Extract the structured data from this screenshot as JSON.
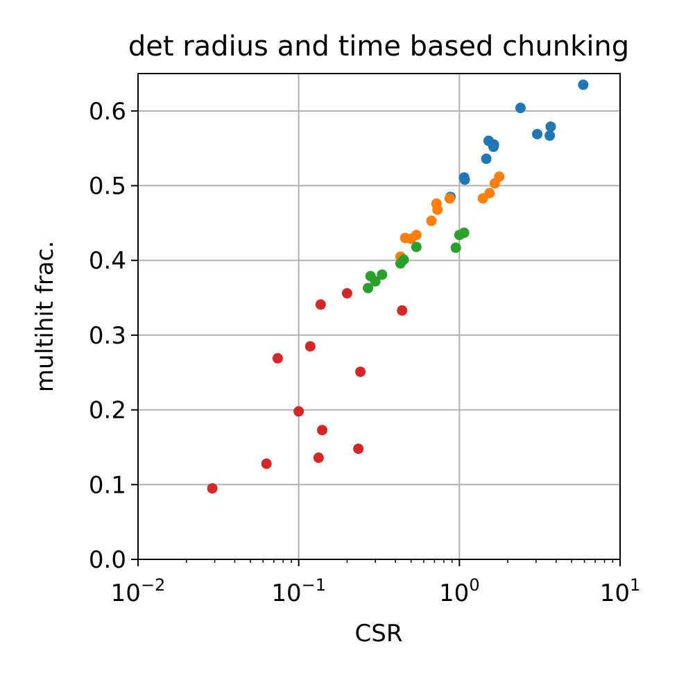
{
  "chart_data": {
    "type": "scatter",
    "title": "det radius and time based chunking",
    "xlabel": "CSR",
    "ylabel": "multihit frac.",
    "xscale": "log",
    "xlim": [
      0.01,
      10
    ],
    "ylim": [
      0.0,
      0.65
    ],
    "x_ticks": [
      {
        "value": 0.01,
        "base": "10",
        "exp": "−2"
      },
      {
        "value": 0.1,
        "base": "10",
        "exp": "−1"
      },
      {
        "value": 1,
        "base": "10",
        "exp": "0"
      },
      {
        "value": 10,
        "base": "10",
        "exp": "1"
      }
    ],
    "y_ticks": [
      {
        "value": 0.0,
        "label": "0.0"
      },
      {
        "value": 0.1,
        "label": "0.1"
      },
      {
        "value": 0.2,
        "label": "0.2"
      },
      {
        "value": 0.3,
        "label": "0.3"
      },
      {
        "value": 0.4,
        "label": "0.4"
      },
      {
        "value": 0.5,
        "label": "0.5"
      },
      {
        "value": 0.6,
        "label": "0.6"
      }
    ],
    "grid": true,
    "legend": "none",
    "series": [
      {
        "color": "#1f77b4",
        "points": [
          {
            "x": 5.9,
            "y": 0.635
          },
          {
            "x": 2.4,
            "y": 0.604
          },
          {
            "x": 3.7,
            "y": 0.579
          },
          {
            "x": 3.05,
            "y": 0.569
          },
          {
            "x": 3.65,
            "y": 0.567
          },
          {
            "x": 1.52,
            "y": 0.56
          },
          {
            "x": 1.64,
            "y": 0.555
          },
          {
            "x": 1.63,
            "y": 0.552
          },
          {
            "x": 1.47,
            "y": 0.536
          },
          {
            "x": 1.07,
            "y": 0.511
          },
          {
            "x": 1.08,
            "y": 0.508
          },
          {
            "x": 0.88,
            "y": 0.485
          }
        ]
      },
      {
        "color": "#ff7f0e",
        "points": [
          {
            "x": 1.77,
            "y": 0.512
          },
          {
            "x": 1.66,
            "y": 0.503
          },
          {
            "x": 1.54,
            "y": 0.49
          },
          {
            "x": 1.4,
            "y": 0.483
          },
          {
            "x": 0.87,
            "y": 0.483
          },
          {
            "x": 0.72,
            "y": 0.476
          },
          {
            "x": 0.73,
            "y": 0.468
          },
          {
            "x": 0.67,
            "y": 0.453
          },
          {
            "x": 0.54,
            "y": 0.434
          },
          {
            "x": 0.5,
            "y": 0.429
          },
          {
            "x": 0.46,
            "y": 0.43
          },
          {
            "x": 0.43,
            "y": 0.405
          }
        ]
      },
      {
        "color": "#2ca02c",
        "points": [
          {
            "x": 1.07,
            "y": 0.437
          },
          {
            "x": 1.0,
            "y": 0.434
          },
          {
            "x": 0.95,
            "y": 0.417
          },
          {
            "x": 0.54,
            "y": 0.418
          },
          {
            "x": 0.45,
            "y": 0.401
          },
          {
            "x": 0.43,
            "y": 0.396
          },
          {
            "x": 0.33,
            "y": 0.381
          },
          {
            "x": 0.28,
            "y": 0.379
          },
          {
            "x": 0.3,
            "y": 0.372
          },
          {
            "x": 0.27,
            "y": 0.363
          }
        ]
      },
      {
        "color": "#d62728",
        "points": [
          {
            "x": 0.2,
            "y": 0.356
          },
          {
            "x": 0.137,
            "y": 0.341
          },
          {
            "x": 0.44,
            "y": 0.333
          },
          {
            "x": 0.118,
            "y": 0.285
          },
          {
            "x": 0.074,
            "y": 0.269
          },
          {
            "x": 0.242,
            "y": 0.251
          },
          {
            "x": 0.1,
            "y": 0.198
          },
          {
            "x": 0.14,
            "y": 0.173
          },
          {
            "x": 0.235,
            "y": 0.148
          },
          {
            "x": 0.133,
            "y": 0.136
          },
          {
            "x": 0.063,
            "y": 0.128
          },
          {
            "x": 0.029,
            "y": 0.095
          }
        ]
      }
    ]
  }
}
